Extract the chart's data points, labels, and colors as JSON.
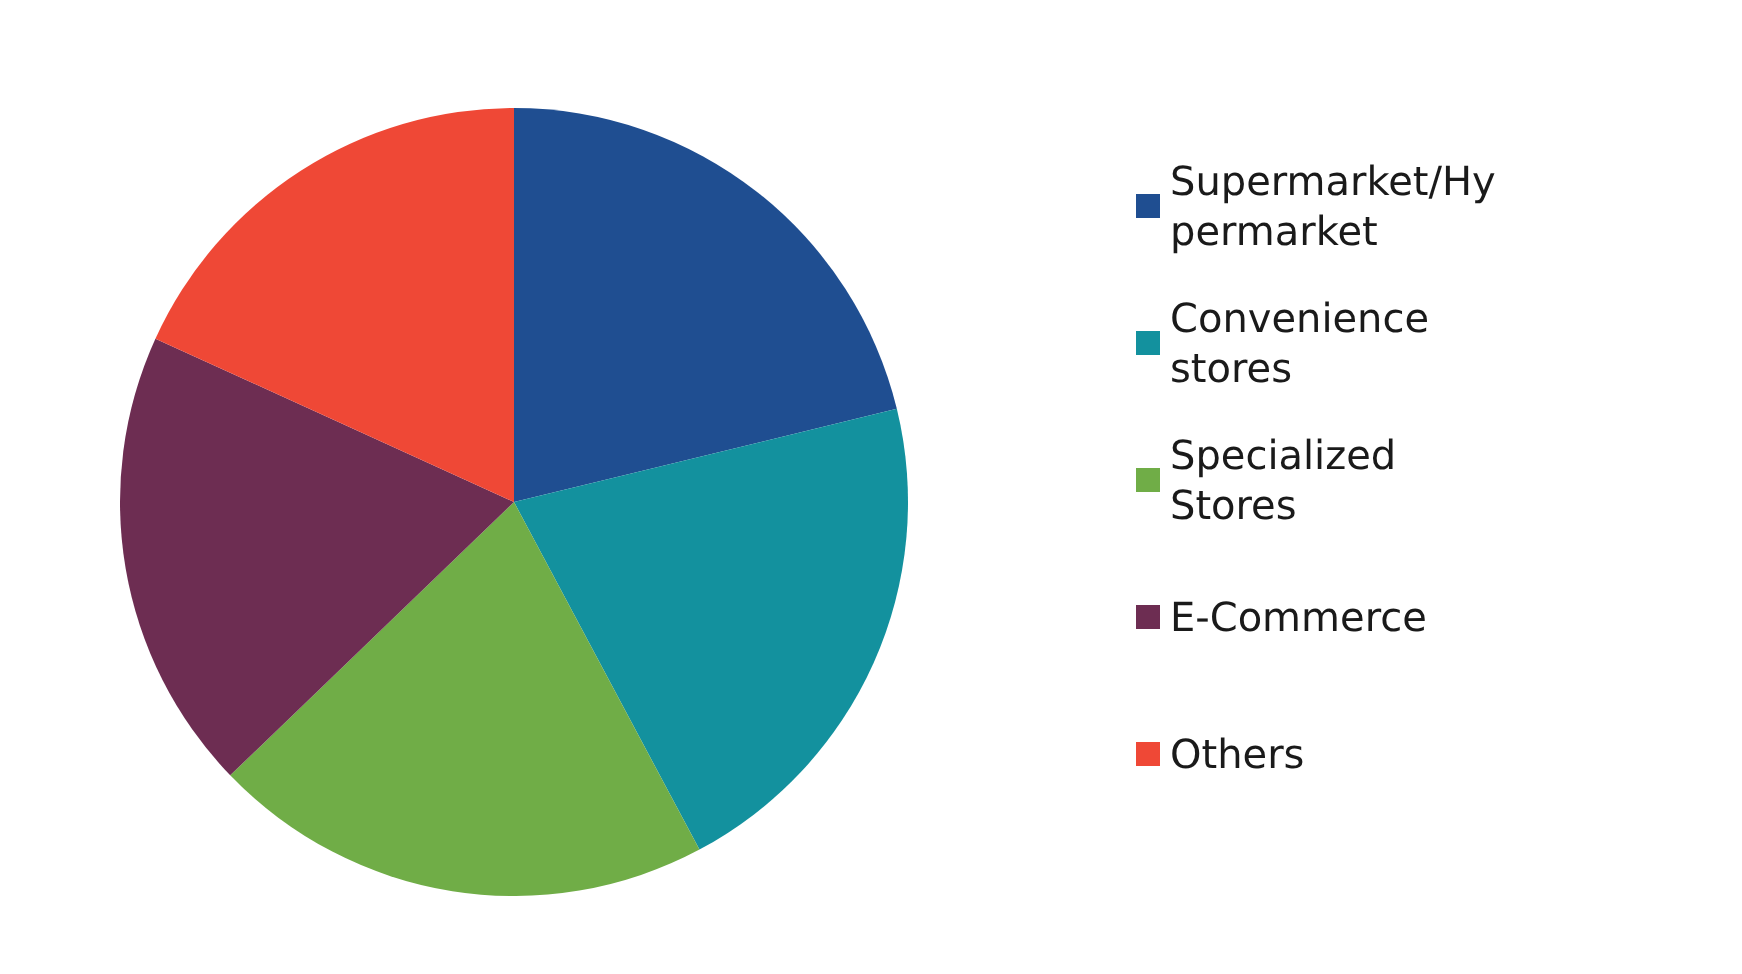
{
  "chart_data": {
    "type": "pie",
    "categories": [
      "Supermarket/Hypermarket",
      "Convenience stores",
      "Specialized Stores",
      "E-Commerce",
      "Others"
    ],
    "values": [
      21.2,
      21.0,
      20.6,
      19.0,
      18.2
    ],
    "colors": [
      "#1f4e91",
      "#13919e",
      "#70ad47",
      "#6d2d52",
      "#ef4836"
    ],
    "legend": "right"
  }
}
